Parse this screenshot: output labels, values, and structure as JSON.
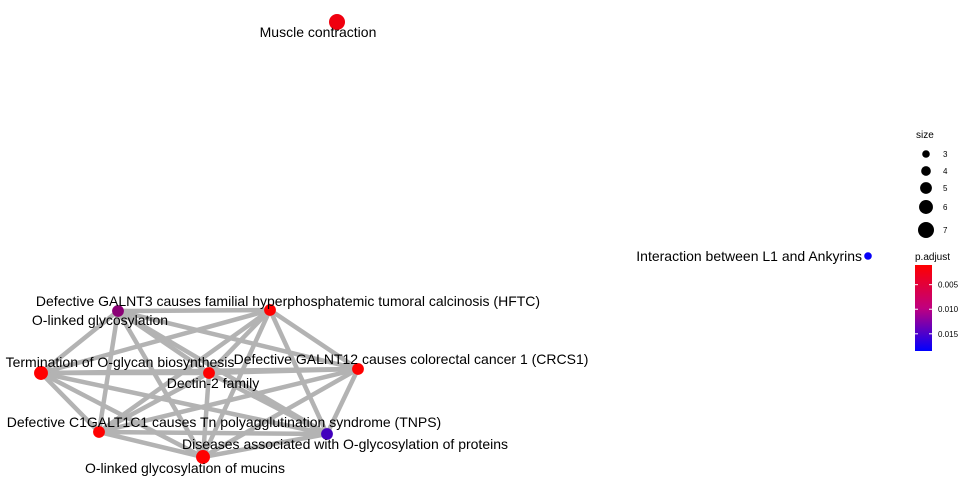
{
  "nodes": [
    {
      "id": "muscle",
      "label": "Muscle contraction",
      "size": 7,
      "p_adjust": 0.002
    },
    {
      "id": "l1",
      "label": "Interaction between L1 and Ankyrins",
      "size": 3,
      "p_adjust": 0.018
    },
    {
      "id": "galnt3",
      "label": "Defective GALNT3 causes familial hyperphosphatemic tumoral calcinosis (HFTC)",
      "size": 5,
      "p_adjust": 0.001
    },
    {
      "id": "olinked",
      "label": "O-linked glycosylation",
      "size": 5,
      "p_adjust": 0.009
    },
    {
      "id": "termination",
      "label": "Termination of O-glycan biosynthesis",
      "size": 6,
      "p_adjust": 0.001
    },
    {
      "id": "galnt12",
      "label": "Defective GALNT12 causes colorectal cancer 1 (CRCS1)",
      "size": 5,
      "p_adjust": 0.001
    },
    {
      "id": "dectin",
      "label": "Dectin-2 family",
      "size": 5,
      "p_adjust": 0.001
    },
    {
      "id": "c1galt1c1",
      "label": "Defective C1GALT1C1 causes Tn polyagglutination syndrome (TNPS)",
      "size": 5,
      "p_adjust": 0.001
    },
    {
      "id": "diseases",
      "label": "Diseases associated with O-glycosylation of proteins",
      "size": 5,
      "p_adjust": 0.014
    },
    {
      "id": "mucins",
      "label": "O-linked glycosylation of mucins",
      "size": 6,
      "p_adjust": 0.001
    }
  ],
  "edges": [
    [
      "olinked",
      "galnt3"
    ],
    [
      "olinked",
      "termination"
    ],
    [
      "olinked",
      "galnt12"
    ],
    [
      "olinked",
      "dectin"
    ],
    [
      "olinked",
      "c1galt1c1"
    ],
    [
      "olinked",
      "diseases"
    ],
    [
      "olinked",
      "mucins"
    ],
    [
      "galnt3",
      "termination"
    ],
    [
      "galnt3",
      "galnt12"
    ],
    [
      "galnt3",
      "dectin"
    ],
    [
      "galnt3",
      "c1galt1c1"
    ],
    [
      "galnt3",
      "diseases"
    ],
    [
      "galnt3",
      "mucins"
    ],
    [
      "termination",
      "galnt12"
    ],
    [
      "termination",
      "dectin"
    ],
    [
      "termination",
      "c1galt1c1"
    ],
    [
      "termination",
      "diseases"
    ],
    [
      "termination",
      "mucins"
    ],
    [
      "galnt12",
      "dectin"
    ],
    [
      "galnt12",
      "c1galt1c1"
    ],
    [
      "galnt12",
      "diseases"
    ],
    [
      "galnt12",
      "mucins"
    ],
    [
      "dectin",
      "c1galt1c1"
    ],
    [
      "dectin",
      "diseases"
    ],
    [
      "dectin",
      "mucins"
    ],
    [
      "c1galt1c1",
      "diseases"
    ],
    [
      "c1galt1c1",
      "mucins"
    ],
    [
      "diseases",
      "mucins"
    ]
  ],
  "legend": {
    "size_title": "size",
    "size_values": [
      "3",
      "4",
      "5",
      "6",
      "7"
    ],
    "color_title": "p.adjust",
    "color_ticks": [
      "0.005",
      "0.010",
      "0.015"
    ],
    "color_low": "#FF0000",
    "color_high": "#0000FF"
  },
  "colors": {
    "edge": "#B3B3B3"
  }
}
